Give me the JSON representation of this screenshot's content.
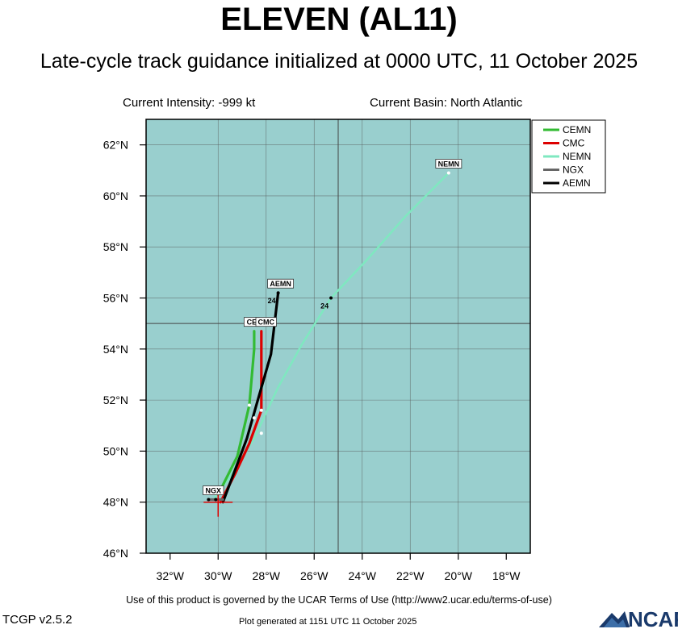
{
  "title": "ELEVEN (AL11)",
  "subtitle": "Late-cycle track guidance initialized at 0000 UTC, 11 October 2025",
  "current_intensity": "Current Intensity: -999 kt",
  "current_basin": "Current Basin: North Atlantic",
  "terms": "Use of this product is governed by the UCAR Terms of Use (http://www2.ucar.edu/terms-of-use)",
  "version": "TCGP v2.5.2",
  "generated": "Plot generated at 1151 UTC   11 October 2025",
  "logo_text": "NCAR",
  "colors": {
    "ocean": "#99cfce",
    "grid": "#555555",
    "CEMN": "#33bb33",
    "CMC": "#dd0000",
    "NEMN": "#7fe8c0",
    "NGX": "#666666",
    "AEMN": "#000000",
    "current_position": "#dd0000"
  },
  "chart_data": {
    "type": "map-tracks",
    "lon_range": [
      -33,
      -17
    ],
    "lat_range": [
      46,
      63
    ],
    "x_ticks": [
      -32,
      -30,
      -28,
      -26,
      -24,
      -22,
      -20,
      -18
    ],
    "x_tick_labels": [
      "32°W",
      "30°W",
      "28°W",
      "26°W",
      "24°W",
      "22°W",
      "20°W",
      "18°W"
    ],
    "y_ticks": [
      46,
      48,
      50,
      52,
      54,
      56,
      58,
      60,
      62
    ],
    "y_tick_labels": [
      "46°N",
      "48°N",
      "50°N",
      "52°N",
      "54°N",
      "56°N",
      "58°N",
      "60°N",
      "62°N"
    ],
    "grid_lon": [
      -30,
      -28,
      -26,
      -24,
      -22,
      -20
    ],
    "grid_lat": [
      48,
      50,
      52,
      54,
      56,
      58,
      60,
      62
    ],
    "major_grid_lon": [
      -25
    ],
    "major_grid_lat": [
      55
    ],
    "current_position": {
      "lon": -30.0,
      "lat": 48.0
    },
    "legend_placement": "top-right",
    "legend": [
      "CEMN",
      "CMC",
      "NEMN",
      "NGX",
      "AEMN"
    ],
    "tracks": [
      {
        "name": "NEMN",
        "points": [
          [
            -30.2,
            48.1
          ],
          [
            -29.5,
            49.0
          ],
          [
            -28.5,
            50.5
          ],
          [
            -27.5,
            52.5
          ],
          [
            -26.5,
            54.2
          ],
          [
            -25.3,
            56.0
          ],
          [
            -23.8,
            57.5
          ],
          [
            -22.2,
            59.2
          ],
          [
            -20.4,
            60.9
          ]
        ],
        "dots": [
          [
            -28.2,
            50.7
          ],
          [
            -25.3,
            56.0
          ],
          [
            -20.4,
            60.9
          ]
        ],
        "dot_24": {
          "lon": -25.3,
          "lat": 56.0,
          "label": "24"
        },
        "tag": {
          "text": "NEMN",
          "lon": -20.4,
          "lat": 60.9
        }
      },
      {
        "name": "CEMN",
        "points": [
          [
            -30.0,
            48.3
          ],
          [
            -29.2,
            49.8
          ],
          [
            -28.7,
            51.8
          ],
          [
            -28.5,
            54.0
          ],
          [
            -28.5,
            54.7
          ]
        ],
        "dots": [
          [
            -28.7,
            51.8
          ]
        ],
        "tag": {
          "text": "CE",
          "lon": -28.6,
          "lat": 54.7
        }
      },
      {
        "name": "CMC",
        "points": [
          [
            -29.9,
            48.0
          ],
          [
            -29.3,
            49.1
          ],
          [
            -28.7,
            50.3
          ],
          [
            -28.2,
            51.6
          ],
          [
            -28.2,
            54.7
          ]
        ],
        "dots": [
          [
            -28.2,
            51.6
          ]
        ],
        "tag": {
          "text": "CMC",
          "lon": -28.0,
          "lat": 54.7
        }
      },
      {
        "name": "AEMN",
        "points": [
          [
            -29.8,
            48.0
          ],
          [
            -29.2,
            49.5
          ],
          [
            -28.8,
            50.5
          ],
          [
            -28.5,
            51.5
          ],
          [
            -27.8,
            53.8
          ],
          [
            -27.5,
            56.2
          ]
        ],
        "dots": [
          [
            -28.5,
            51.3
          ],
          [
            -27.5,
            56.2
          ]
        ],
        "dot_24": {
          "lon": -27.5,
          "lat": 56.2,
          "label": "24"
        },
        "tag": {
          "text": "AEMN",
          "lon": -27.4,
          "lat": 56.2
        }
      },
      {
        "name": "NGX",
        "points": [
          [
            -30.4,
            48.1
          ],
          [
            -29.8,
            48.1
          ]
        ],
        "dots": [
          [
            -30.4,
            48.1
          ],
          [
            -30.1,
            48.1
          ]
        ],
        "tag": {
          "text": "NGX",
          "lon": -30.2,
          "lat": 48.1
        }
      }
    ]
  }
}
